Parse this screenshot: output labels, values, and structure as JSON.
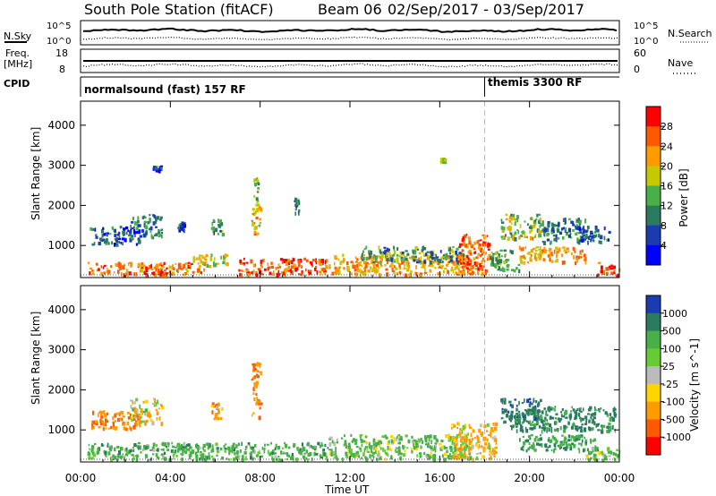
{
  "header": {
    "station": "South Pole Station (fitACF)",
    "beam": "Beam 06",
    "dates": "02/Sep/2017 - 03/Sep/2017"
  },
  "info_panels": {
    "nsky_label": "N.Sky",
    "nsearch_label": "N.Search",
    "nsky_ticks": [
      "10^5",
      "10^0"
    ],
    "nsearch_ticks": [
      "10^5",
      "10^0"
    ],
    "freq_label_1": "Freq.",
    "freq_label_2": "[MHz]",
    "freq_ticks": [
      "18",
      "8"
    ],
    "nave_label": "Nave",
    "nave_ticks": [
      "60",
      "0"
    ],
    "cpid_label": "CPID",
    "cpid_segments": [
      {
        "label": "normalsound (fast) 157 RF",
        "start_hour": 0
      },
      {
        "label": "themis 3300 RF",
        "start_hour": 18
      }
    ]
  },
  "chart_data": [
    {
      "type": "heatmap",
      "title": "Power",
      "ylabel": "Slant Range [km]",
      "xlabel": "",
      "colorbar_label": "Power [dB]",
      "colorbar_ticks": [
        "28",
        "24",
        "20",
        "16",
        "12",
        "8",
        "4"
      ],
      "colorbar_colors": [
        "#ff0000",
        "#ff5a00",
        "#ff9a00",
        "#c8c800",
        "#48b048",
        "#2a7a60",
        "#1a3cb0",
        "#0000ff"
      ],
      "x_range_hours": [
        0,
        24
      ],
      "ylim": [
        200,
        4600
      ],
      "yticks": [
        1000,
        2000,
        3000,
        4000
      ],
      "blobs": [
        {
          "t0": 0.4,
          "t1": 2.6,
          "r0": 1050,
          "r1": 1500,
          "v": 7
        },
        {
          "t0": 2.2,
          "t1": 3.6,
          "r0": 1200,
          "r1": 1800,
          "v": 10
        },
        {
          "t0": 3.2,
          "t1": 3.6,
          "r0": 2900,
          "r1": 3000,
          "v": 6
        },
        {
          "t0": 5.8,
          "t1": 6.3,
          "r0": 1300,
          "r1": 1700,
          "v": 12
        },
        {
          "t0": 4.3,
          "t1": 4.6,
          "r0": 1400,
          "r1": 1600,
          "v": 6
        },
        {
          "t0": 7.6,
          "t1": 8.0,
          "r0": 1300,
          "r1": 2000,
          "v": 20
        },
        {
          "t0": 7.7,
          "t1": 7.9,
          "r0": 2000,
          "r1": 2700,
          "v": 14
        },
        {
          "t0": 9.5,
          "t1": 9.7,
          "r0": 1800,
          "r1": 2200,
          "v": 8
        },
        {
          "t0": 0.3,
          "t1": 5.5,
          "r0": 300,
          "r1": 600,
          "v": 24
        },
        {
          "t0": 2.8,
          "t1": 3.8,
          "r0": 280,
          "r1": 500,
          "v": 28
        },
        {
          "t0": 5.0,
          "t1": 6.5,
          "r0": 500,
          "r1": 800,
          "v": 18
        },
        {
          "t0": 7.0,
          "t1": 11.0,
          "r0": 300,
          "r1": 700,
          "v": 26
        },
        {
          "t0": 11.0,
          "t1": 17.5,
          "r0": 300,
          "r1": 800,
          "v": 22
        },
        {
          "t0": 12.5,
          "t1": 17.0,
          "r0": 600,
          "r1": 1000,
          "v": 12
        },
        {
          "t0": 16.8,
          "t1": 18.2,
          "r0": 300,
          "r1": 1300,
          "v": 26
        },
        {
          "t0": 18.2,
          "t1": 19.5,
          "r0": 400,
          "r1": 900,
          "v": 14
        },
        {
          "t0": 18.7,
          "t1": 20.5,
          "r0": 1200,
          "r1": 1800,
          "v": 16
        },
        {
          "t0": 19.5,
          "t1": 22.5,
          "r0": 600,
          "r1": 1000,
          "v": 22
        },
        {
          "t0": 20.5,
          "t1": 22.5,
          "r0": 1100,
          "r1": 1700,
          "v": 10
        },
        {
          "t0": 22.0,
          "t1": 23.6,
          "r0": 1100,
          "r1": 1500,
          "v": 8
        },
        {
          "t0": 23.0,
          "t1": 24.0,
          "r0": 280,
          "r1": 600,
          "v": 26
        },
        {
          "t0": 16.0,
          "t1": 16.2,
          "r0": 3100,
          "r1": 3200,
          "v": 16
        }
      ]
    },
    {
      "type": "heatmap",
      "title": "Velocity",
      "ylabel": "Slant Range [km]",
      "xlabel": "Time UT",
      "colorbar_label": "Velocity [m s^-1]",
      "colorbar_ticks": [
        "1000",
        "500",
        "100",
        "25",
        "-25",
        "-100",
        "-500",
        "-1000"
      ],
      "colorbar_colors": [
        "#1a3cb0",
        "#2a7a60",
        "#48b048",
        "#66cc33",
        "#bbbbbb",
        "#ffd400",
        "#ff9a00",
        "#ff5a00",
        "#ff0000"
      ],
      "x_range_hours": [
        0,
        24
      ],
      "x_tick_labels": [
        "00:00",
        "04:00",
        "08:00",
        "12:00",
        "16:00",
        "20:00",
        "00:00"
      ],
      "ylim": [
        200,
        4600
      ],
      "yticks": [
        1000,
        2000,
        3000,
        4000
      ],
      "blobs": [
        {
          "t0": 0.4,
          "t1": 2.6,
          "r0": 1050,
          "r1": 1500,
          "v": -500
        },
        {
          "t0": 2.2,
          "t1": 3.6,
          "r0": 1200,
          "r1": 1800,
          "v": -150
        },
        {
          "t0": 5.8,
          "t1": 6.3,
          "r0": 1300,
          "r1": 1700,
          "v": -300
        },
        {
          "t0": 7.6,
          "t1": 8.0,
          "r0": 1300,
          "r1": 2700,
          "v": -500
        },
        {
          "t0": 0.3,
          "t1": 11.0,
          "r0": 280,
          "r1": 700,
          "v": 300
        },
        {
          "t0": 11.0,
          "t1": 17.5,
          "r0": 300,
          "r1": 900,
          "v": 200
        },
        {
          "t0": 16.5,
          "t1": 18.5,
          "r0": 300,
          "r1": 1200,
          "v": -200
        },
        {
          "t0": 18.7,
          "t1": 20.5,
          "r0": 1200,
          "r1": 1800,
          "v": 800
        },
        {
          "t0": 19.0,
          "t1": 23.8,
          "r0": 1000,
          "r1": 1600,
          "v": 700
        },
        {
          "t0": 19.5,
          "t1": 23.0,
          "r0": 500,
          "r1": 900,
          "v": 400
        },
        {
          "t0": 22.5,
          "t1": 24.0,
          "r0": 280,
          "r1": 600,
          "v": 200
        }
      ]
    }
  ]
}
